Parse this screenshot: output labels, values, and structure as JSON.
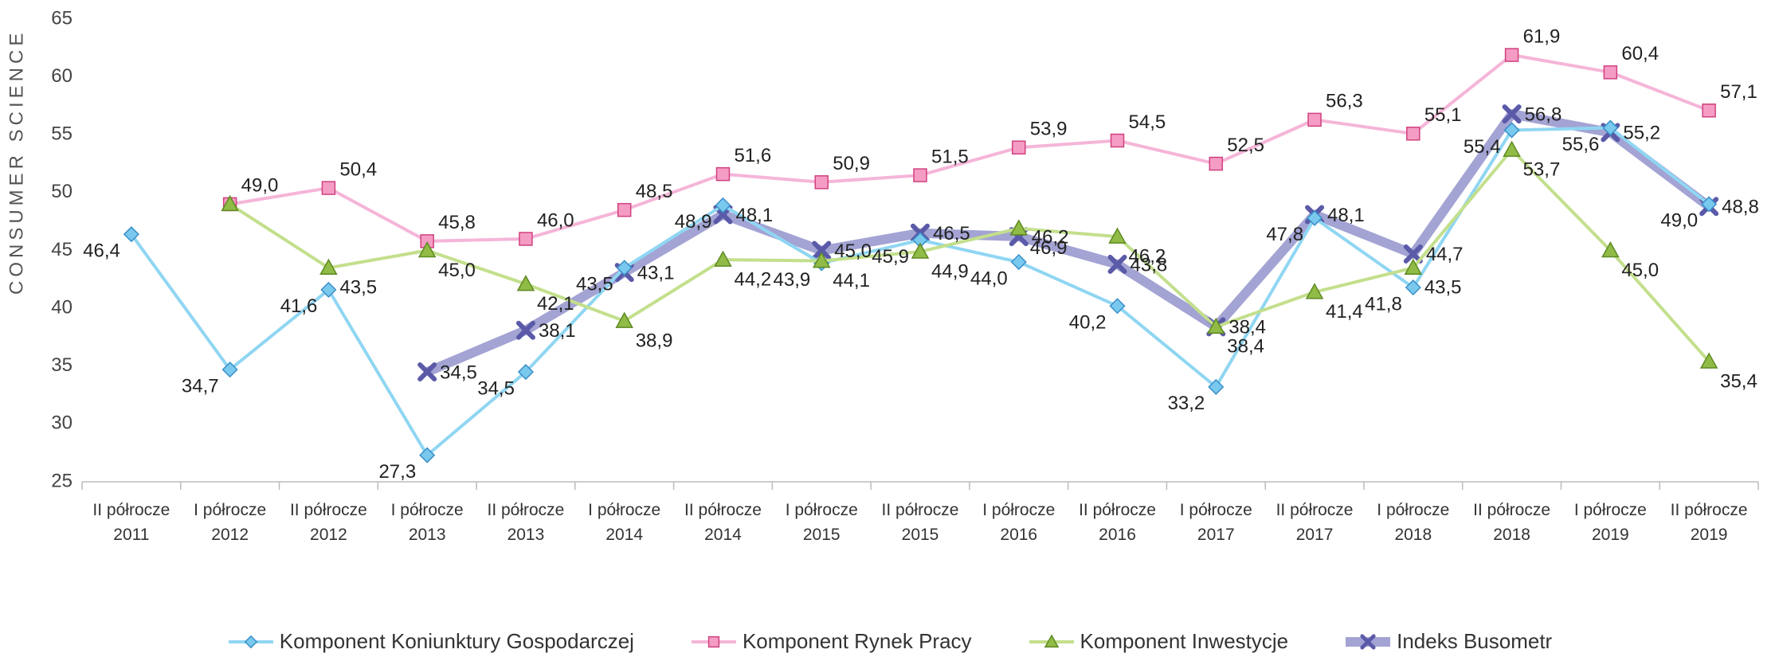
{
  "chart_data": {
    "type": "line",
    "y_label": "CONSUMER SCIENCE",
    "categories": [
      "II półrocze 2011",
      "I półrocze 2012",
      "II półrocze 2012",
      "I półrocze 2013",
      "II półrocze 2013",
      "I półrocze 2014",
      "II półrocze 2014",
      "I półrocze 2015",
      "II półrocze 2015",
      "I półrocze 2016",
      "II półrocze 2016",
      "I półrocze 2017",
      "II półrocze 2017",
      "I półrocze 2018",
      "II półrocze 2018",
      "I półrocze 2019",
      "II półrocze 2019"
    ],
    "ylim": [
      25,
      65
    ],
    "yticks": [
      25,
      30,
      35,
      40,
      45,
      50,
      55,
      60,
      65
    ],
    "grid": false,
    "legend": "bottom",
    "series": [
      {
        "name": "Komponent Koniunktury Gospodarczej",
        "color": "#8fd6f2",
        "marker": "diamond",
        "values": [
          46.4,
          34.7,
          41.6,
          27.3,
          34.5,
          43.5,
          48.9,
          43.9,
          45.9,
          44.0,
          40.2,
          33.2,
          47.8,
          41.8,
          55.4,
          55.6,
          49.0
        ],
        "value_labels": [
          "46,4",
          "34,7",
          "41,6",
          "27,3",
          "34,5",
          "43,5",
          "48,9",
          "43,9",
          "45,9",
          "44,0",
          "40,2",
          "33,2",
          "47,8",
          "41,8",
          "55,4",
          "55,6",
          "49,0"
        ]
      },
      {
        "name": "Komponent Rynek Pracy",
        "color": "#f5b5d8",
        "marker": "square",
        "values": [
          null,
          49.0,
          50.4,
          45.8,
          46.0,
          48.5,
          51.6,
          50.9,
          51.5,
          53.9,
          54.5,
          52.5,
          56.3,
          55.1,
          61.9,
          60.4,
          57.1
        ],
        "value_labels": [
          null,
          "49,0",
          "50,4",
          "45,8",
          "46,0",
          "48,5",
          "51,6",
          "50,9",
          "51,5",
          "53,9",
          "54,5",
          "52,5",
          "56,3",
          "55,1",
          "61,9",
          "60,4",
          "57,1"
        ]
      },
      {
        "name": "Komponent Inwestycje",
        "color": "#c3df8c",
        "marker": "triangle",
        "values": [
          null,
          49.0,
          43.5,
          45.0,
          42.1,
          38.9,
          44.2,
          44.1,
          44.9,
          46.9,
          46.2,
          38.4,
          41.4,
          43.5,
          53.7,
          45.0,
          35.4
        ],
        "value_labels": [
          null,
          null,
          "43,5",
          "45,0",
          "42,1",
          "38,9",
          "44,2",
          "44,1",
          "44,9",
          "46,9",
          "46,2",
          "38,4",
          "41,4",
          "43,5",
          "53,7",
          "45,0",
          "35,4"
        ]
      },
      {
        "name": "Indeks Busometr",
        "color": "#a3a3d4",
        "marker": "x",
        "values": [
          null,
          null,
          null,
          34.5,
          38.1,
          43.1,
          48.1,
          45.0,
          46.5,
          46.2,
          43.8,
          38.4,
          48.1,
          44.7,
          56.8,
          55.2,
          48.8
        ],
        "value_labels": [
          null,
          null,
          null,
          "34,5",
          "38,1",
          "43,1",
          "48,1",
          "45,0",
          "46,5",
          "46,2",
          "43,8",
          "38,4",
          "48,1",
          "44,7",
          "56,8",
          "55,2",
          "48,8"
        ]
      }
    ]
  }
}
